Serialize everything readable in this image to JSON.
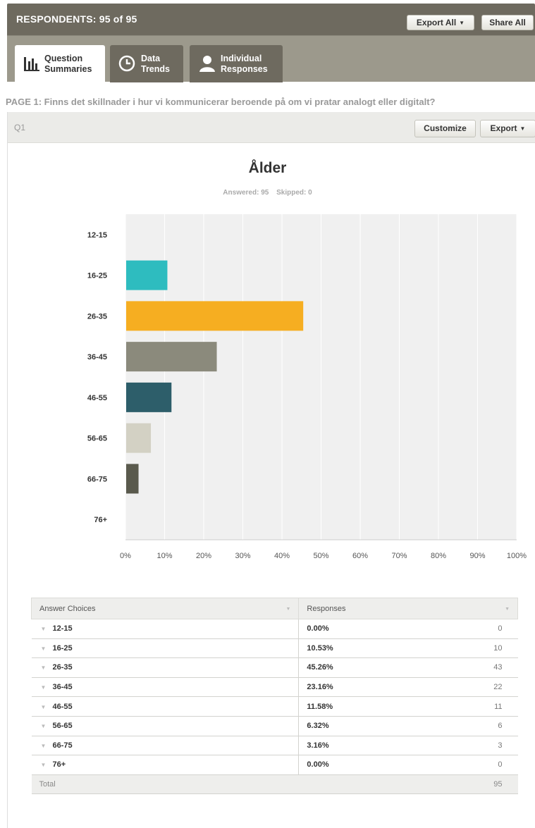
{
  "header": {
    "title": "RESPONDENTS: 95 of 95",
    "export_all": "Export All",
    "share_all": "Share All"
  },
  "tabs": [
    {
      "label": "Question\nSummaries",
      "icon": "bar-chart-icon",
      "active": true
    },
    {
      "label": "Data\nTrends",
      "icon": "clock-icon",
      "active": false
    },
    {
      "label": "Individual\nResponses",
      "icon": "person-icon",
      "active": false
    }
  ],
  "page_title": "PAGE 1: Finns det skillnader i hur vi kommunicerar beroende på om vi pratar analogt eller digitalt?",
  "question": {
    "number": "Q1",
    "customize": "Customize",
    "export": "Export",
    "title": "Ålder",
    "answered": "Answered: 95",
    "skipped": "Skipped: 0"
  },
  "chart_data": {
    "type": "bar",
    "orientation": "horizontal",
    "title": "Ålder",
    "categories": [
      "12-15",
      "16-25",
      "26-35",
      "36-45",
      "46-55",
      "56-65",
      "66-75",
      "76+"
    ],
    "values": [
      0.0,
      10.53,
      45.26,
      23.16,
      11.58,
      6.32,
      3.16,
      0.0
    ],
    "colors": [
      "#2ebcbf",
      "#2ebcbf",
      "#f6ae21",
      "#8b8a7c",
      "#2d5e6a",
      "#d3d1c4",
      "#5a5a4d",
      "#5a5a4d"
    ],
    "xlim": [
      0,
      100
    ],
    "xticks": [
      "0%",
      "10%",
      "20%",
      "30%",
      "40%",
      "50%",
      "60%",
      "70%",
      "80%",
      "90%",
      "100%"
    ],
    "grid": true
  },
  "table": {
    "headers": [
      "Answer Choices",
      "Responses"
    ],
    "rows": [
      {
        "choice": "12-15",
        "percent": "0.00%",
        "count": "0"
      },
      {
        "choice": "16-25",
        "percent": "10.53%",
        "count": "10"
      },
      {
        "choice": "26-35",
        "percent": "45.26%",
        "count": "43"
      },
      {
        "choice": "36-45",
        "percent": "23.16%",
        "count": "22"
      },
      {
        "choice": "46-55",
        "percent": "11.58%",
        "count": "11"
      },
      {
        "choice": "56-65",
        "percent": "6.32%",
        "count": "6"
      },
      {
        "choice": "66-75",
        "percent": "3.16%",
        "count": "3"
      },
      {
        "choice": "76+",
        "percent": "0.00%",
        "count": "0"
      }
    ],
    "total_label": "Total",
    "total_value": "95"
  }
}
